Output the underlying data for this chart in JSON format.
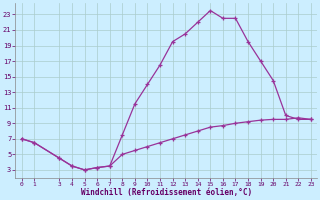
{
  "xlabel": "Windchill (Refroidissement éolien,°C)",
  "bg_color": "#cceeff",
  "line_color": "#993399",
  "grid_color": "#aacccc",
  "xlim": [
    -0.5,
    23.5
  ],
  "ylim": [
    2,
    24.5
  ],
  "xticks": [
    0,
    1,
    3,
    4,
    5,
    6,
    7,
    8,
    9,
    10,
    11,
    12,
    13,
    14,
    15,
    16,
    17,
    18,
    19,
    20,
    21,
    22,
    23
  ],
  "yticks": [
    3,
    5,
    7,
    9,
    11,
    13,
    15,
    17,
    19,
    21,
    23
  ],
  "line1_x": [
    0,
    1,
    3,
    4,
    5,
    6,
    7,
    8,
    9,
    10,
    11,
    12,
    13,
    14,
    15,
    16,
    17,
    18,
    19,
    20,
    21,
    22,
    23
  ],
  "line1_y": [
    7,
    6.5,
    4.5,
    3.5,
    3,
    3.3,
    3.5,
    7.5,
    11.5,
    14,
    16.5,
    19.5,
    20.5,
    22,
    23.5,
    22.5,
    22.5,
    19.5,
    17,
    14.5,
    10,
    9.5,
    9.5
  ],
  "line2_x": [
    0,
    1,
    3,
    4,
    5,
    6,
    7,
    8,
    9,
    10,
    11,
    12,
    13,
    14,
    15,
    16,
    17,
    18,
    19,
    20,
    21,
    22,
    23
  ],
  "line2_y": [
    7,
    6.5,
    4.5,
    3.5,
    3,
    3.3,
    3.5,
    5,
    5.5,
    6,
    6.5,
    7,
    7.5,
    8,
    8.5,
    8.7,
    9,
    9.2,
    9.4,
    9.5,
    9.5,
    9.7,
    9.5
  ]
}
